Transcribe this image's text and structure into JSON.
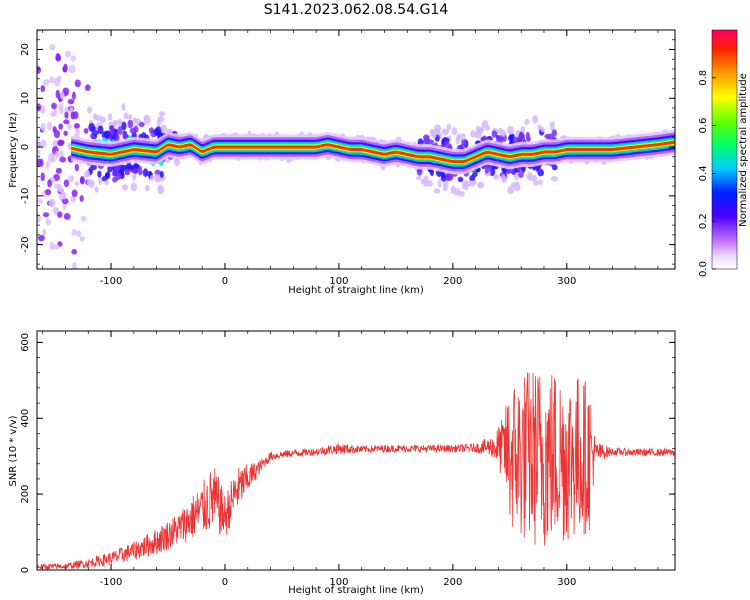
{
  "title": "S141.2023.062.08.54.G14",
  "colors": {
    "snr_line": "#ee3333",
    "axis": "#000000"
  },
  "chart_data": [
    {
      "type": "heatmap",
      "title": "S141.2023.062.08.54.G14",
      "xlabel": "Height of straight line (km)",
      "ylabel": "Frequency (Hz)",
      "xlim": [
        -165,
        395
      ],
      "ylim": [
        -25,
        24
      ],
      "xticks": [
        -100,
        0,
        100,
        200,
        300
      ],
      "yticks": [
        -20,
        -10,
        0,
        10,
        20
      ],
      "colorbar": {
        "label": "Normalized spectral amplitude",
        "range": [
          0,
          1
        ],
        "ticks": [
          0.0,
          0.2,
          0.4,
          0.6,
          0.8
        ],
        "colormap": "rainbow (white, purple, blue, cyan, green, yellow, orange, red)"
      },
      "ridge": {
        "description": "dominant frequency versus height",
        "x": [
          -140,
          -120,
          -100,
          -80,
          -60,
          -50,
          -40,
          -30,
          -20,
          -10,
          0,
          20,
          40,
          60,
          80,
          90,
          100,
          110,
          120,
          130,
          140,
          150,
          160,
          170,
          180,
          190,
          200,
          210,
          220,
          230,
          240,
          250,
          260,
          270,
          280,
          290,
          300,
          320,
          340,
          360,
          380,
          395
        ],
        "y": [
          0,
          -1,
          -1.5,
          -0.5,
          -1,
          0.5,
          0,
          0.5,
          -1,
          0,
          0,
          0,
          0,
          0,
          0,
          0.5,
          0,
          -0.5,
          -0.5,
          -1,
          -1.5,
          -1,
          -1.5,
          -2,
          -2,
          -2.5,
          -3,
          -3,
          -2,
          -1,
          -1.5,
          -2,
          -1.5,
          -1.5,
          -1,
          -1,
          -0.5,
          -0.5,
          -0.5,
          0,
          0.5,
          1
        ]
      }
    },
    {
      "type": "line",
      "xlabel": "Height of straight line (km)",
      "ylabel": "SNR (10 * v/v)",
      "xlim": [
        -165,
        395
      ],
      "ylim": [
        0,
        630
      ],
      "xticks": [
        -100,
        0,
        100,
        200,
        300
      ],
      "yticks": [
        0,
        200,
        400,
        600
      ],
      "series": [
        {
          "values_description": "noisy SNR envelope: mean level and spread (data units)",
          "x": [
            -165,
            -140,
            -120,
            -100,
            -80,
            -60,
            -40,
            -20,
            -10,
            0,
            10,
            20,
            30,
            40,
            60,
            80,
            100,
            120,
            140,
            160,
            180,
            200,
            220,
            235,
            245,
            250,
            260,
            270,
            280,
            290,
            300,
            310,
            320,
            325,
            340,
            360,
            380,
            395
          ],
          "mean": [
            8,
            10,
            18,
            30,
            50,
            75,
            110,
            160,
            190,
            140,
            210,
            240,
            270,
            300,
            308,
            312,
            320,
            318,
            320,
            320,
            320,
            320,
            322,
            325,
            320,
            300,
            300,
            300,
            300,
            300,
            300,
            300,
            300,
            310,
            312,
            310,
            310,
            310
          ],
          "spread": [
            8,
            8,
            12,
            18,
            25,
            35,
            45,
            70,
            90,
            60,
            60,
            40,
            20,
            12,
            10,
            10,
            15,
            10,
            10,
            10,
            10,
            10,
            12,
            30,
            90,
            200,
            230,
            240,
            250,
            240,
            230,
            220,
            200,
            30,
            10,
            10,
            10,
            10
          ]
        }
      ]
    }
  ]
}
